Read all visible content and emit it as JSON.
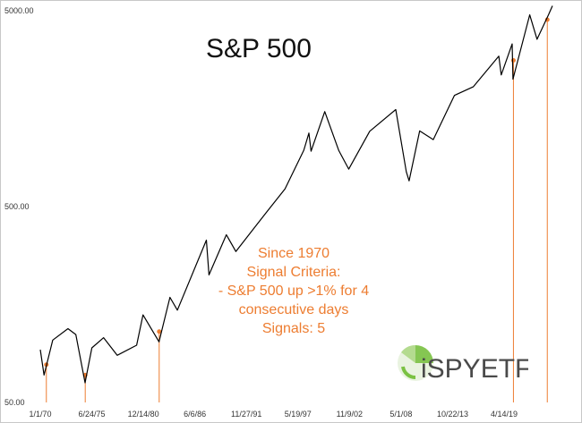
{
  "chart_data": {
    "type": "line",
    "title": "S&P 500",
    "xlabel": "",
    "ylabel": "",
    "y_scale": "log",
    "ylim": [
      50,
      5000
    ],
    "y_ticks": [
      "50.00",
      "500.00",
      "5000.00"
    ],
    "y_tick_values": [
      50,
      500,
      5000
    ],
    "x_ticks": [
      "1/1/70",
      "6/24/75",
      "12/14/80",
      "6/6/86",
      "11/27/91",
      "5/19/97",
      "11/9/02",
      "5/1/08",
      "10/22/13",
      "4/14/19"
    ],
    "xlim": [
      "1970-01-01",
      "2024-06-01"
    ],
    "grid": false,
    "series": [
      {
        "color": "#000000",
        "x": [
          "1970-01-01",
          "1970-05-26",
          "1971-04-28",
          "1972-12-11",
          "1973-10-11",
          "1974-10-03",
          "1975-06-24",
          "1976-09-21",
          "1978-03-06",
          "1980-03-27",
          "1980-11-28",
          "1982-08-12",
          "1983-10-10",
          "1984-07-24",
          "1987-08-25",
          "1987-12-04",
          "1989-10-09",
          "1990-10-11",
          "1993-12-31",
          "1995-12-31",
          "1997-12-31",
          "1998-07-17",
          "1998-10-08",
          "2000-03-24",
          "2001-09-21",
          "2002-10-09",
          "2004-12-31",
          "2007-10-09",
          "2008-11-20",
          "2009-03-09",
          "2010-04-23",
          "2011-10-03",
          "2013-12-31",
          "2015-12-31",
          "2018-09-20",
          "2018-12-24",
          "2020-02-19",
          "2020-03-23",
          "2021-12-31",
          "2022-10-12",
          "2023-12-31",
          "2024-06-01"
        ],
        "values": [
          93,
          69,
          104,
          119,
          111,
          63,
          95,
          107,
          87,
          98,
          140,
          102,
          172,
          148,
          337,
          224,
          359,
          295,
          466,
          616,
          970,
          1187,
          959,
          1527,
          966,
          777,
          1212,
          1565,
          752,
          677,
          1217,
          1099,
          1848,
          2044,
          2931,
          2351,
          3386,
          2237,
          4766,
          3577,
          4770,
          5300
        ]
      }
    ],
    "signals": {
      "color": "#ed7d31",
      "x": [
        "1970-08-24",
        "1974-10-11",
        "1982-08-20",
        "2020-04-09",
        "2023-11-14"
      ],
      "values": [
        78,
        69,
        115,
        2790,
        4500
      ]
    },
    "annotation": [
      "Since 1970",
      "Signal Criteria:",
      "- S&P 500 up >1% for 4",
      "consecutive days",
      "Signals: 5"
    ],
    "logo_text": "iSPYETF"
  },
  "colors": {
    "line": "#000000",
    "signal": "#ed7d31",
    "logo_dark": "#4a4a4a",
    "logo_green": "#7ac142"
  }
}
